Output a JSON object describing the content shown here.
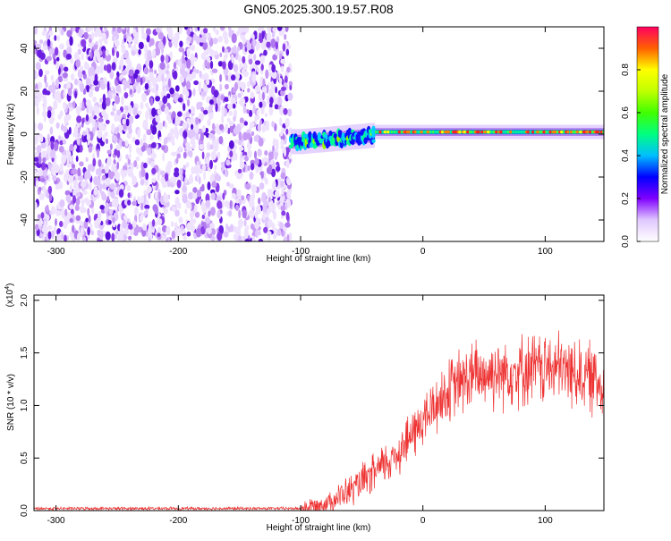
{
  "title": "GN05.2025.300.19.57.R08",
  "chart_data": [
    {
      "type": "heatmap",
      "name": "spectrogram",
      "xlabel": "Height of straight line (km)",
      "ylabel": "Frequency (Hz)",
      "xlim": [
        -318,
        148
      ],
      "ylim": [
        -50,
        50
      ],
      "xticks": [
        -300,
        -200,
        -100,
        0,
        100
      ],
      "yticks": [
        -40,
        -20,
        0,
        20,
        40
      ],
      "noise_region": [
        -318,
        -108
      ],
      "signal_region": [
        -108,
        148
      ],
      "signal_frequency_hz": 1,
      "colorbar": {
        "label": "Normalized spectral amplitude",
        "range": [
          0,
          1
        ],
        "ticks": [
          0.0,
          0.2,
          0.4,
          0.6,
          0.8
        ],
        "tick_labels": [
          "0.0",
          "0.2",
          "0.4",
          "0.6",
          "0.8"
        ]
      }
    },
    {
      "type": "line",
      "name": "snr",
      "xlabel": "Height of straight line (km)",
      "ylabel": "SNR (10 * v/v)",
      "multiplier_label": "(x10",
      "multiplier_exponent": "4",
      "xlim": [
        -318,
        148
      ],
      "ylim": [
        0,
        2.05
      ],
      "xticks": [
        -300,
        -200,
        -100,
        0,
        100
      ],
      "yticks": [
        0.0,
        0.5,
        1.0,
        1.5,
        2.0
      ],
      "ytick_labels": [
        "0.0",
        "0.5",
        "1.0",
        "1.5",
        "2.0"
      ],
      "color": "#ee3333",
      "profile_x": [
        -318,
        -100,
        -85,
        -70,
        -55,
        -40,
        -25,
        -10,
        0,
        10,
        20,
        30,
        40,
        50,
        70,
        90,
        110,
        130,
        148
      ],
      "profile_y": [
        0.02,
        0.02,
        0.05,
        0.12,
        0.22,
        0.35,
        0.5,
        0.7,
        0.85,
        1.0,
        1.12,
        1.22,
        1.27,
        1.3,
        1.33,
        1.35,
        1.35,
        1.3,
        1.2
      ]
    }
  ]
}
